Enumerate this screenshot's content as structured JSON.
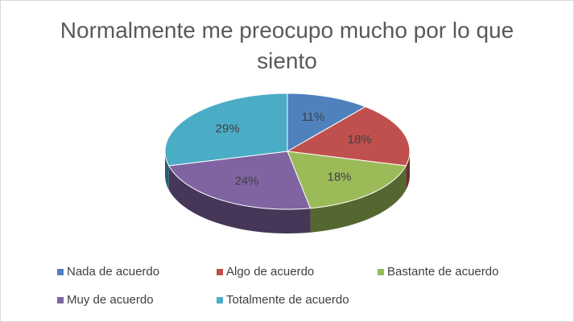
{
  "chart_data": {
    "type": "pie",
    "title": "Normalmente me preocupo mucho por lo que siento",
    "categories": [
      "Nada de acuerdo",
      "Algo de acuerdo",
      "Bastante de acuerdo",
      "Muy de acuerdo",
      "Totalmente de acuerdo"
    ],
    "values": [
      11,
      18,
      18,
      24,
      29
    ],
    "value_labels": [
      "11%",
      "18%",
      "18%",
      "24%",
      "29%"
    ],
    "colors": [
      "#4f81bd",
      "#c0504d",
      "#9bbb59",
      "#8064a2",
      "#4bacc6"
    ],
    "legend": "bottom"
  }
}
